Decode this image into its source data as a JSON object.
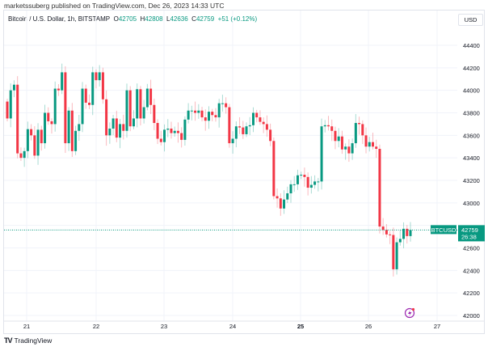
{
  "header": {
    "published": "marketssuberg published on TradingView.com, Dec 26, 2023 14:33 UTC",
    "symbol_desc": "Bitcoin / U.S. Dollar, 1h, BITSTAMP",
    "o_label": "O",
    "o": "42705",
    "h_label": "H",
    "h": "42808",
    "l_label": "L",
    "l": "42636",
    "c_label": "C",
    "c": "42759",
    "change": "+51 (+0.12%)",
    "currency": "USD"
  },
  "footer": {
    "brand": "TradingView",
    "logo_text": "TV"
  },
  "colors": {
    "up": "#089981",
    "down": "#f23645",
    "grid": "#f0f3fa",
    "accent": "#9c27b0"
  },
  "chart_data": {
    "type": "candlestick",
    "title": "Bitcoin / U.S. Dollar, 1h, BITSTAMP",
    "xlabel": "",
    "ylabel": "USD",
    "ylim": [
      42000,
      44400
    ],
    "yticks": [
      44400,
      44200,
      44000,
      43800,
      43600,
      43400,
      43200,
      43000,
      42800,
      42600,
      42400,
      42200,
      42000
    ],
    "xticks": [
      "21",
      "22",
      "23",
      "24",
      "25",
      "26",
      "27"
    ],
    "xticks_bold": "25",
    "grid": true,
    "first_open": 43900,
    "closes": [
      43750,
      44000,
      44050,
      43440,
      43400,
      43460,
      43655,
      43600,
      43420,
      43650,
      43530,
      43800,
      43725,
      43700,
      44015,
      44000,
      44160,
      43530,
      43820,
      43460,
      43640,
      43700,
      44015,
      43890,
      43870,
      44160,
      44090,
      44160,
      43920,
      43600,
      43660,
      43750,
      43580,
      43700,
      43640,
      44000,
      43680,
      43750,
      44010,
      43750,
      43850,
      44015,
      43870,
      43710,
      43570,
      43540,
      43650,
      43660,
      43620,
      43640,
      43620,
      43560,
      43740,
      43820,
      43820,
      43800,
      43820,
      43760,
      43730,
      43810,
      43780,
      43760,
      43885,
      43885,
      43850,
      43530,
      43570,
      43680,
      43670,
      43610,
      43680,
      43690,
      43800,
      43760,
      43720,
      43700,
      43650,
      43550,
      43060,
      43040,
      42950,
      43030,
      43085,
      43165,
      43165,
      43245,
      43250,
      43230,
      43135,
      43160,
      43190,
      43190,
      43680,
      43690,
      43680,
      43640,
      43550,
      43590,
      43475,
      43500,
      43440,
      43530,
      43710,
      43700,
      43600,
      43500,
      43540,
      43500,
      43480,
      42790,
      42760,
      42720,
      42715,
      42410,
      42650,
      42680,
      42770,
      42705,
      42759
    ],
    "last_price": 42759,
    "last_price_label": "42759",
    "countdown": "26:38",
    "symbol_tag": "BTCUSD"
  }
}
